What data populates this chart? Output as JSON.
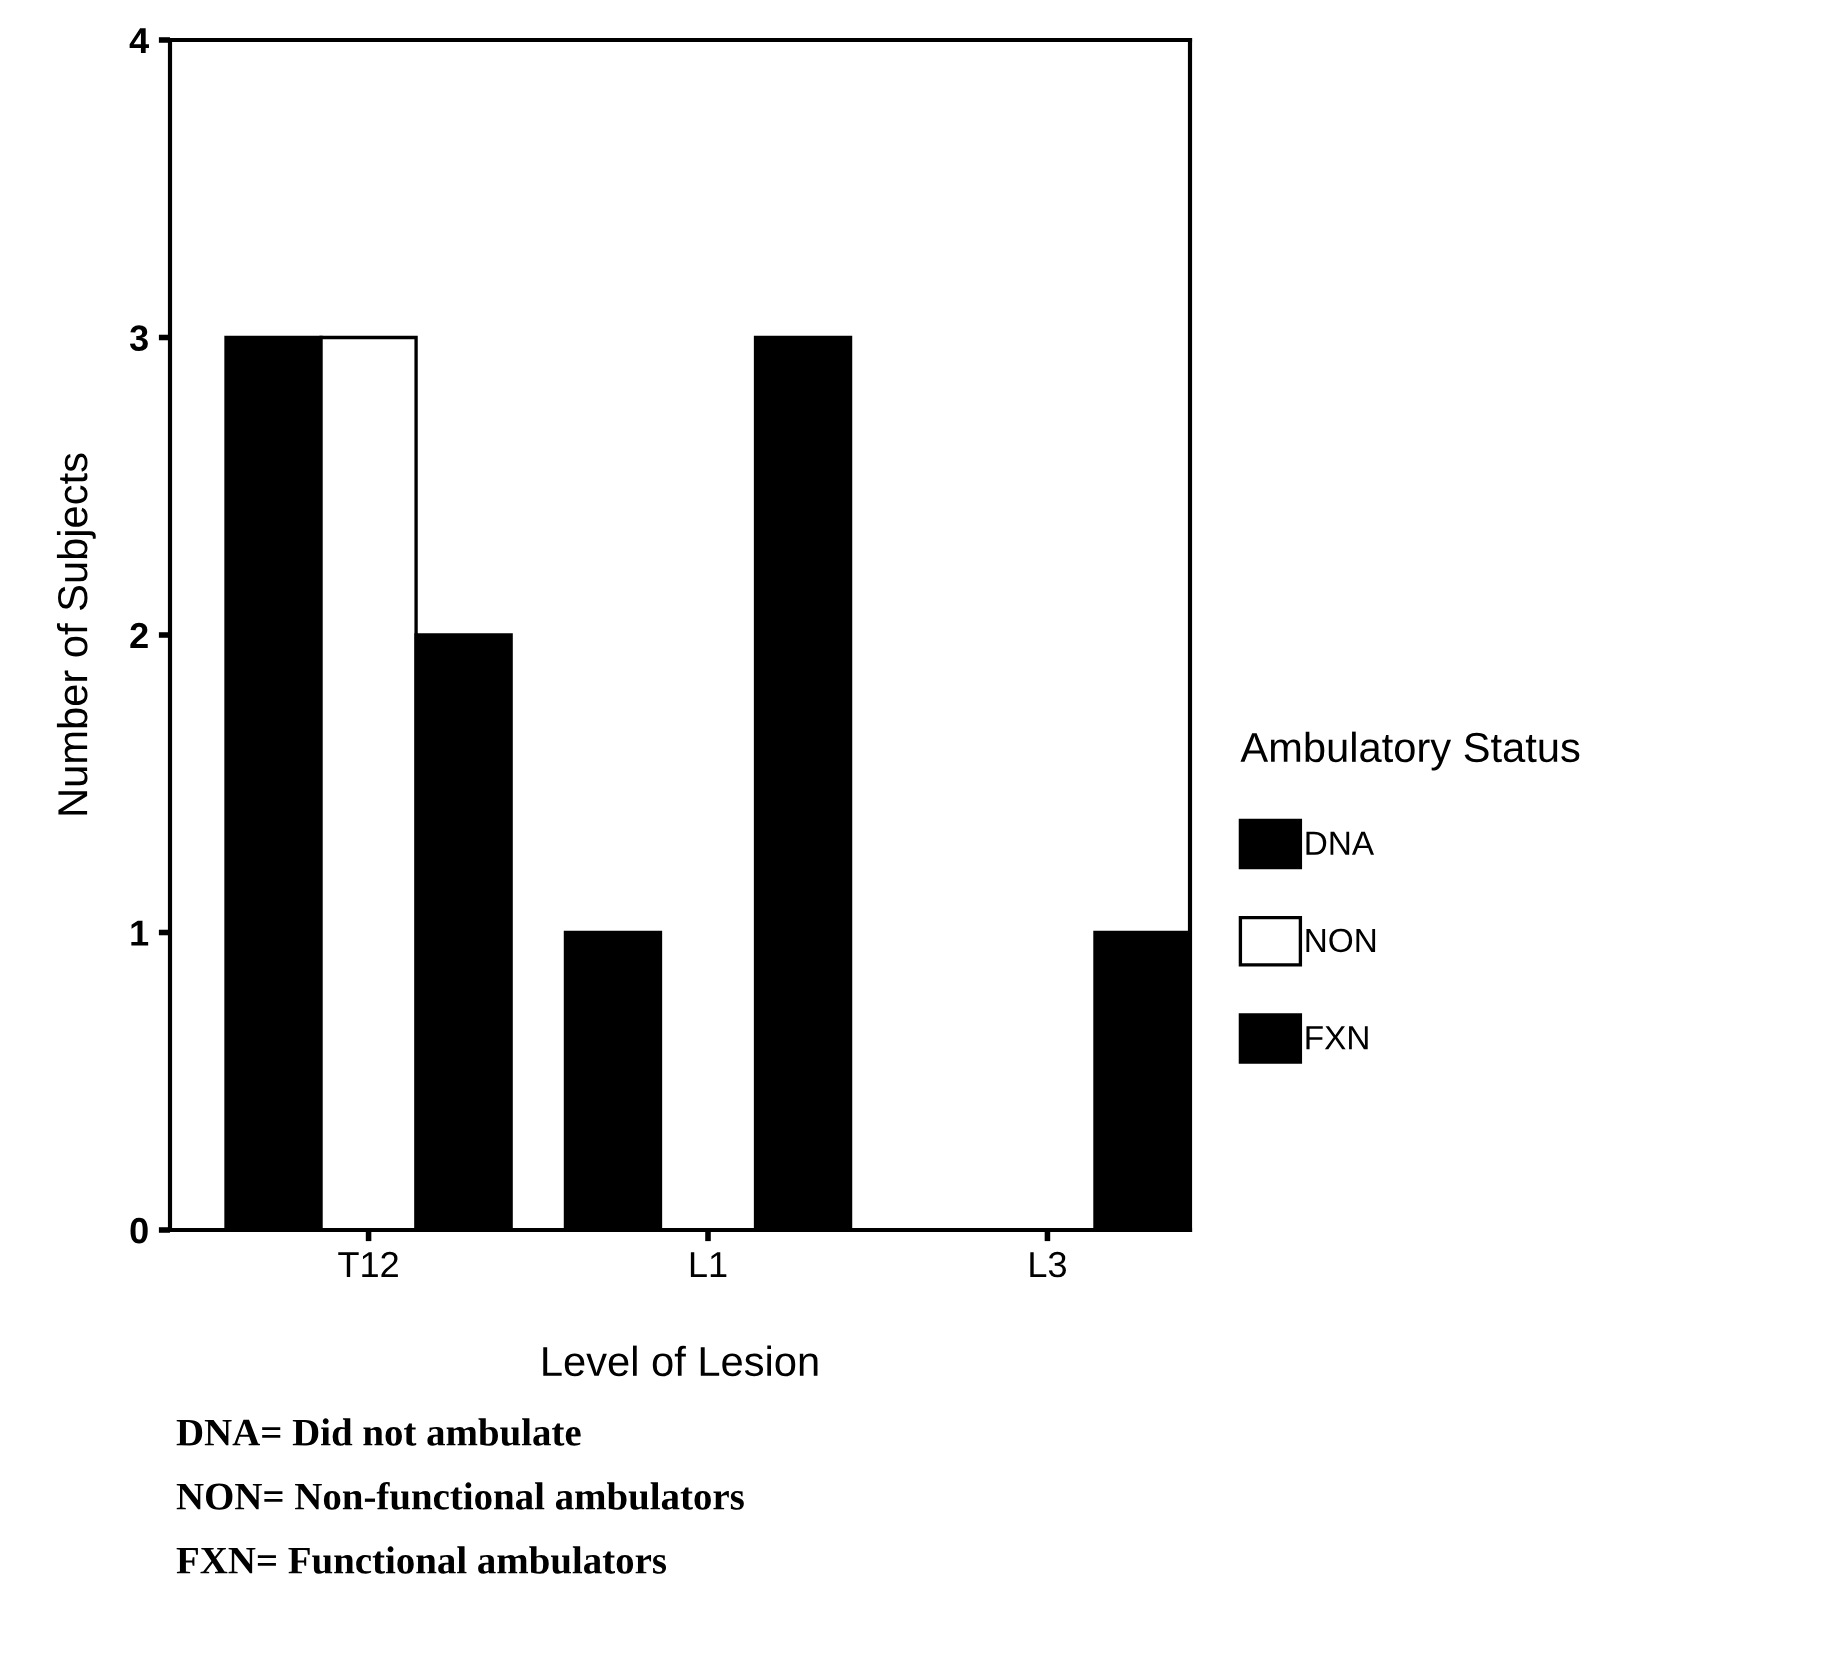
{
  "chart_data": {
    "type": "bar",
    "xlabel": "Level of Lesion",
    "ylabel": "Number of Subjects",
    "legend_title": "Ambulatory Status",
    "categories": [
      "T12",
      "L1",
      "L3"
    ],
    "series": [
      {
        "name": "DNA",
        "color": "#000000",
        "values": [
          3,
          1,
          0
        ]
      },
      {
        "name": "NON",
        "color": "#ffffff",
        "values": [
          3,
          0,
          0
        ]
      },
      {
        "name": "FXN",
        "color": "#000000",
        "values": [
          2,
          3,
          1
        ]
      }
    ],
    "ylim": [
      0,
      4
    ],
    "yticks": [
      0,
      1,
      2,
      3,
      4
    ],
    "grid": false,
    "legend": "right",
    "annotations": [
      "DNA= Did not ambulate",
      "NON= Non-functional ambulators",
      "FXN= Functional ambulators"
    ]
  }
}
